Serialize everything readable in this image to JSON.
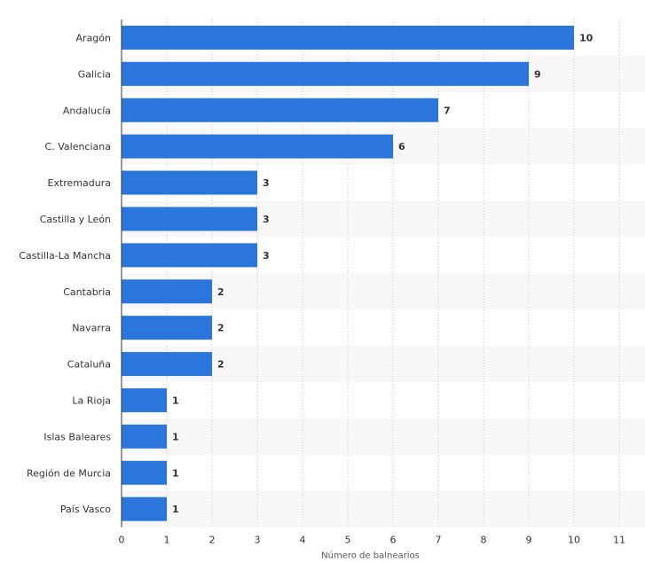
{
  "chart_data": {
    "type": "bar",
    "orientation": "horizontal",
    "categories": [
      "Aragón",
      "Galicia",
      "Andalucía",
      "C. Valenciana",
      "Extremadura",
      "Castilla y León",
      "Castilla-La Mancha",
      "Cantabria",
      "Navarra",
      "Cataluña",
      "La Rioja",
      "Islas Baleares",
      "Región de Murcia",
      "País Vasco"
    ],
    "values": [
      10,
      9,
      7,
      6,
      3,
      3,
      3,
      2,
      2,
      2,
      1,
      1,
      1,
      1
    ],
    "xlabel": "Número de balnearios",
    "xlim": [
      0,
      11
    ],
    "xticks": [
      0,
      1,
      2,
      3,
      4,
      5,
      6,
      7,
      8,
      9,
      10,
      11
    ],
    "grid": "vertical dotted",
    "bar_color": "#2a76dd",
    "row_band_color": "#f7f7f7"
  }
}
